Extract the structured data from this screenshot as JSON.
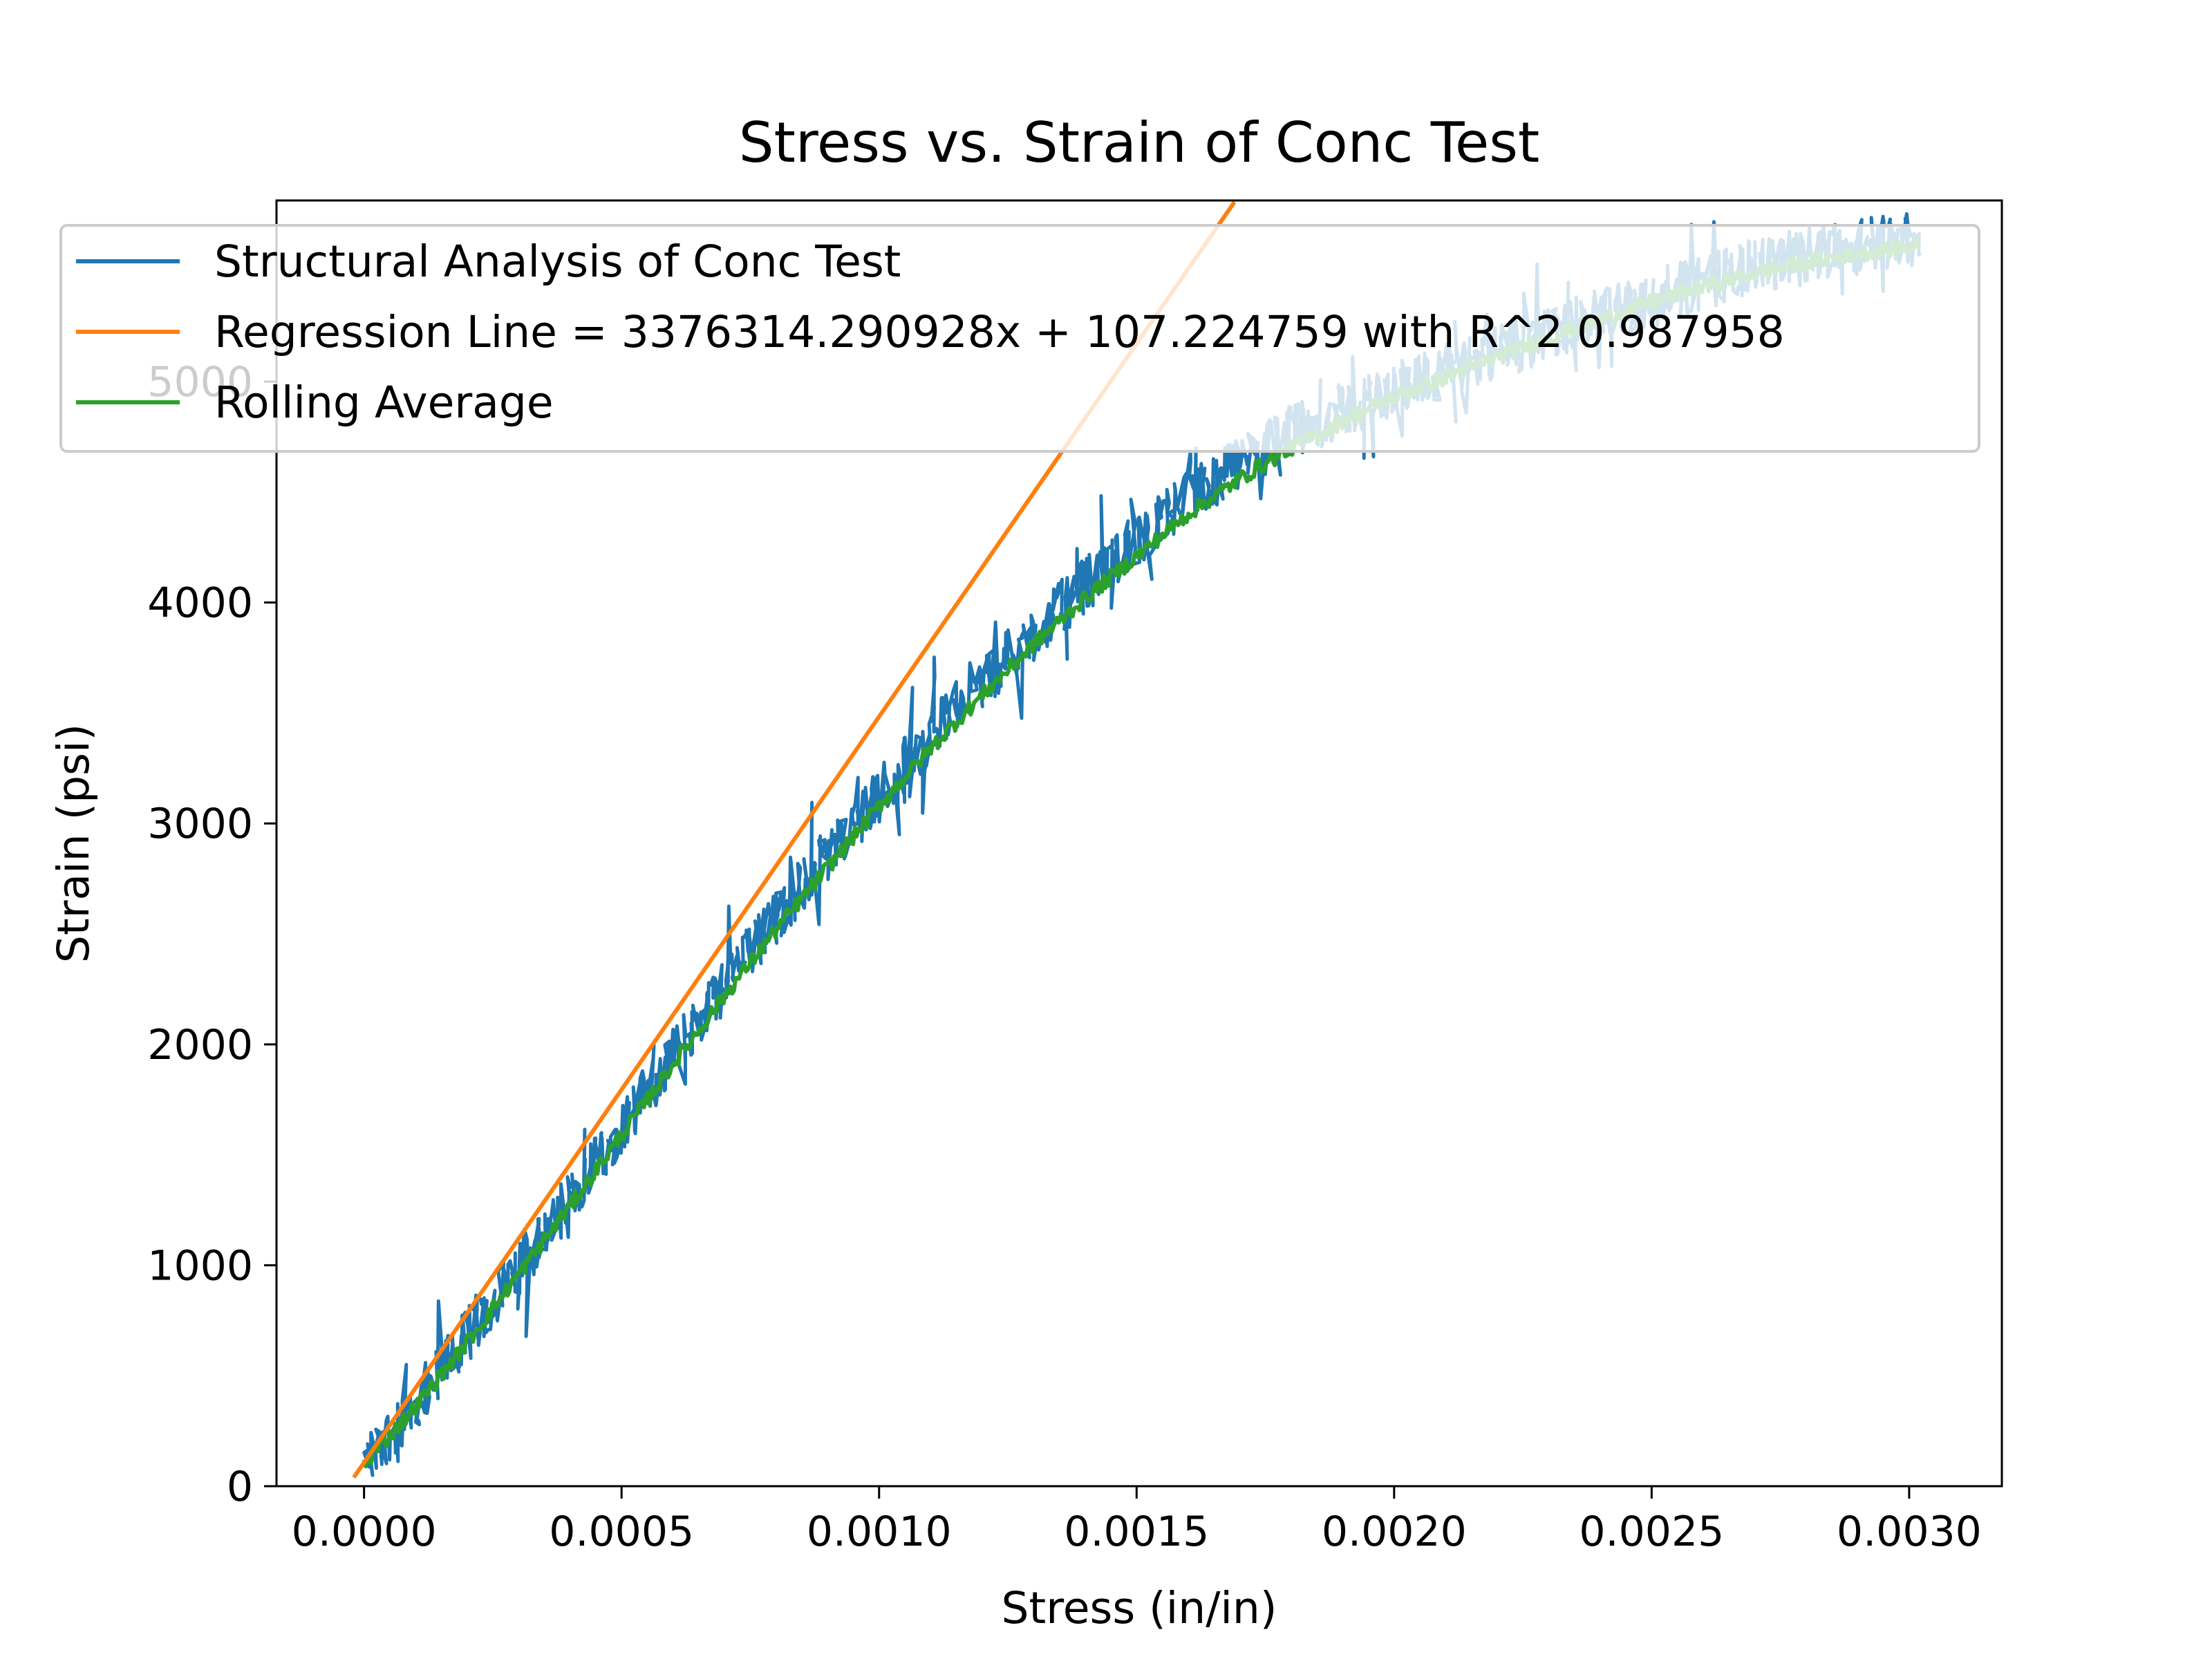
{
  "chart_data": {
    "type": "line",
    "title": "Stress vs. Strain of Conc Test",
    "xlabel": "Stress (in/in)",
    "ylabel": "Strain (psi)",
    "xlim": [
      -0.00017,
      0.00318
    ],
    "ylim": [
      0,
      5820
    ],
    "x_ticks": [
      0.0,
      0.0005,
      0.001,
      0.0015,
      0.002,
      0.0025,
      0.003
    ],
    "x_tick_labels": [
      "0.0000",
      "0.0005",
      "0.0010",
      "0.0015",
      "0.0020",
      "0.0025",
      "0.0030"
    ],
    "y_ticks": [
      0,
      1000,
      2000,
      3000,
      4000,
      5000
    ],
    "y_tick_labels": [
      "0",
      "1000",
      "2000",
      "3000",
      "4000",
      "5000"
    ],
    "grid": false,
    "legend_position": "top-left",
    "series": [
      {
        "name": "Structural Analysis of Conc Test",
        "color": "#1f77b4",
        "noise_amplitude": 250,
        "x": [
          0.0,
          0.0001,
          0.0002,
          0.0003,
          0.0004,
          0.0005,
          0.0006,
          0.0007,
          0.0008,
          0.0009,
          0.001,
          0.0011,
          0.0012,
          0.0013,
          0.0014,
          0.0015,
          0.0016,
          0.0017,
          0.0018,
          0.0019,
          0.002,
          0.0021,
          0.0022,
          0.0023,
          0.0024,
          0.0025,
          0.0026,
          0.0027,
          0.0028,
          0.0029,
          0.003,
          0.00302
        ],
        "y": [
          100,
          380,
          680,
          990,
          1300,
          1630,
          1950,
          2270,
          2580,
          2860,
          3130,
          3400,
          3640,
          3860,
          4080,
          4280,
          4470,
          4630,
          4770,
          4870,
          4960,
          5050,
          5130,
          5220,
          5300,
          5380,
          5450,
          5520,
          5580,
          5620,
          5650,
          5600
        ]
      },
      {
        "name": "Regression Line = 3376314.290928x + 107.224759 with R^2 0.987958",
        "color": "#ff7f0e",
        "x": [
          -2e-05,
          0.00169
        ],
        "y": [
          39.7,
          5813.2
        ]
      },
      {
        "name": "Rolling Average",
        "color": "#2ca02c",
        "x": [
          0.0,
          0.0001,
          0.0002,
          0.0003,
          0.0004,
          0.0005,
          0.0006,
          0.0007,
          0.0008,
          0.0009,
          0.001,
          0.0011,
          0.0012,
          0.0013,
          0.0014,
          0.0015,
          0.0016,
          0.0017,
          0.0018,
          0.0019,
          0.002,
          0.0021,
          0.0022,
          0.0023,
          0.0024,
          0.0025,
          0.0026,
          0.0027,
          0.0028,
          0.0029,
          0.003,
          0.00302
        ],
        "y": [
          100,
          360,
          650,
          960,
          1270,
          1590,
          1910,
          2220,
          2520,
          2800,
          3080,
          3340,
          3580,
          3810,
          4020,
          4210,
          4400,
          4560,
          4700,
          4820,
          4930,
          5020,
          5110,
          5200,
          5280,
          5360,
          5430,
          5490,
          5540,
          5580,
          5610,
          5620
        ]
      }
    ]
  }
}
